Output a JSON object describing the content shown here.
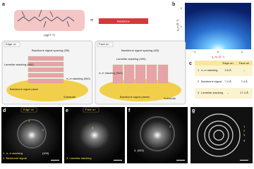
{
  "panel_a": {
    "label": "a",
    "backbone": "Backbone",
    "polymer": "p(g2T-T)"
  },
  "panel_b": {
    "label": "b",
    "y_axis": "q_z (Å⁻¹)",
    "x_axis": "q_xy (Å⁻¹)",
    "yticks": [
      "2",
      "1",
      "0"
    ],
    "xticks": [
      "−1",
      "0",
      "1"
    ]
  },
  "panel_c": {
    "edge_on": {
      "title": "Edge on",
      "backbone": "Backbone signal spacing (00l)",
      "lamellar": "Lamellar stacking (h00)",
      "pi": "π–π stacking (0k0)",
      "plane": "Backbone signal plane",
      "substrate": "Substrate"
    },
    "face_on": {
      "title": "Face on",
      "backbone": "Backbone signal spacing (00l)",
      "lamellar": "Lamellar stacking (h00)",
      "pi": "π–π stacking (0k0)",
      "plane": "Backbone signal planes",
      "substrate": "Substrate"
    }
  },
  "table": {
    "label": "c",
    "header": [
      "Edge-on",
      "Face-on"
    ],
    "rows": [
      [
        "1",
        "π–π stacking",
        "3.8 Å",
        "–"
      ],
      [
        "2",
        "Backbone signal",
        "7.4 Å",
        "7.4 Å"
      ],
      [
        "3",
        "Lamellar stacking",
        "–",
        "17.4 Å"
      ]
    ]
  },
  "panel_d": {
    "label": "d",
    "title": "Edge on",
    "note1": "1. π–π stacking",
    "note2": "2. Backbone signal",
    "peak": "(100)",
    "n1": "1",
    "n2": "2"
  },
  "panel_e": {
    "label": "e",
    "title": "Face on",
    "note": "3. Lamellar stacking",
    "n": "3"
  },
  "panel_f": {
    "label": "f",
    "peak": "4. (003)",
    "n": "2"
  },
  "panel_g": {
    "label": "g",
    "rings": [
      "1",
      "2",
      "3",
      "4"
    ]
  }
}
